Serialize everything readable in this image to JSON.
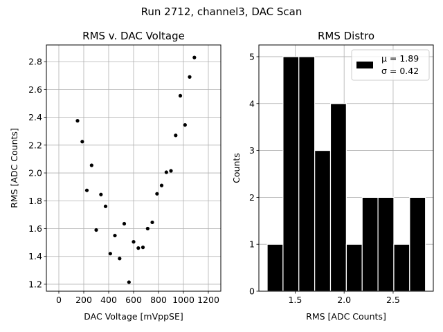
{
  "figure": {
    "suptitle": "Run 2712, channel3, DAC Scan",
    "colors": {
      "background": "#ffffff",
      "axis": "#000000",
      "grid": "#b0b0b0",
      "marker": "#000000",
      "bar_fill": "#000000",
      "bar_edge": "#ffffff"
    }
  },
  "chart_data": [
    {
      "type": "scatter",
      "title": "RMS v. DAC Voltage",
      "xlabel": "DAC Voltage [mVppSE]",
      "ylabel": "RMS [ADC Counts]",
      "xlim": [
        -100,
        1300
      ],
      "ylim": [
        1.15,
        2.92
      ],
      "xticks": [
        0,
        200,
        400,
        600,
        800,
        1000,
        1200
      ],
      "yticks": [
        1.2,
        1.4,
        1.6,
        1.8,
        2.0,
        2.2,
        2.4,
        2.6,
        2.8
      ],
      "ytick_labels": [
        "1.2",
        "1.4",
        "1.6",
        "1.8",
        "2.0",
        "2.2",
        "2.4",
        "2.6",
        "2.8"
      ],
      "grid": true,
      "points": [
        {
          "x": 150,
          "y": 2.375
        },
        {
          "x": 188,
          "y": 2.225
        },
        {
          "x": 225,
          "y": 1.875
        },
        {
          "x": 263,
          "y": 2.055
        },
        {
          "x": 300,
          "y": 1.59
        },
        {
          "x": 338,
          "y": 1.845
        },
        {
          "x": 375,
          "y": 1.76
        },
        {
          "x": 413,
          "y": 1.42
        },
        {
          "x": 450,
          "y": 1.55
        },
        {
          "x": 488,
          "y": 1.385
        },
        {
          "x": 525,
          "y": 1.635
        },
        {
          "x": 563,
          "y": 1.215
        },
        {
          "x": 600,
          "y": 1.505
        },
        {
          "x": 638,
          "y": 1.46
        },
        {
          "x": 675,
          "y": 1.465
        },
        {
          "x": 713,
          "y": 1.6
        },
        {
          "x": 750,
          "y": 1.645
        },
        {
          "x": 788,
          "y": 1.85
        },
        {
          "x": 825,
          "y": 1.91
        },
        {
          "x": 863,
          "y": 2.005
        },
        {
          "x": 900,
          "y": 2.015
        },
        {
          "x": 938,
          "y": 2.27
        },
        {
          "x": 975,
          "y": 2.555
        },
        {
          "x": 1013,
          "y": 2.345
        },
        {
          "x": 1050,
          "y": 2.69
        },
        {
          "x": 1088,
          "y": 2.83
        }
      ]
    },
    {
      "type": "bar",
      "title": "RMS Distro",
      "xlabel": "RMS [ADC Counts]",
      "ylabel": "Counts",
      "xlim": [
        1.13,
        2.91
      ],
      "ylim": [
        0,
        5.25
      ],
      "xticks": [
        1.5,
        2.0,
        2.5
      ],
      "xtick_labels": [
        "1.5",
        "2.0",
        "2.5"
      ],
      "yticks": [
        0,
        1,
        2,
        3,
        4,
        5
      ],
      "grid": true,
      "bins": [
        {
          "x0": 1.215,
          "x1": 1.3765,
          "count": 1
        },
        {
          "x0": 1.3765,
          "x1": 1.538,
          "count": 5
        },
        {
          "x0": 1.538,
          "x1": 1.6995,
          "count": 5
        },
        {
          "x0": 1.6995,
          "x1": 1.861,
          "count": 3
        },
        {
          "x0": 1.861,
          "x1": 2.0225,
          "count": 4
        },
        {
          "x0": 2.0225,
          "x1": 2.184,
          "count": 1
        },
        {
          "x0": 2.184,
          "x1": 2.3455,
          "count": 2
        },
        {
          "x0": 2.3455,
          "x1": 2.507,
          "count": 2
        },
        {
          "x0": 2.507,
          "x1": 2.6685,
          "count": 1
        },
        {
          "x0": 2.6685,
          "x1": 2.83,
          "count": 2
        }
      ],
      "legend": {
        "location": "upper right",
        "lines": [
          "μ = 1.89",
          "σ = 0.42"
        ]
      }
    }
  ]
}
